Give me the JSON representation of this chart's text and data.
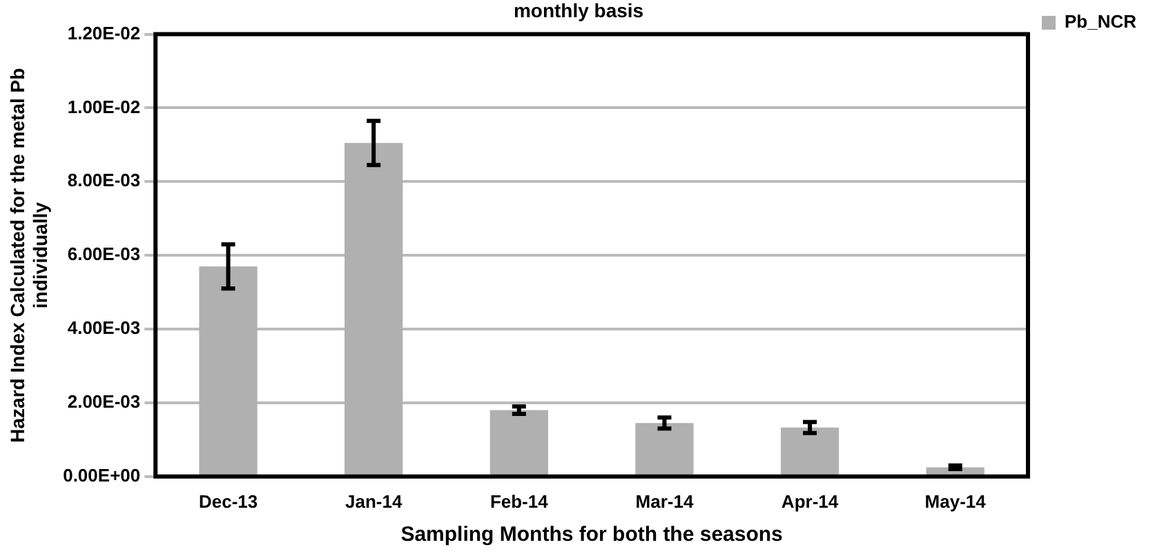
{
  "chart_data": {
    "type": "bar",
    "title": "monthly basis",
    "xlabel": "Sampling Months for both the seasons",
    "ylabel": "Hazard Index Calculated for the metal Pb individually",
    "categories": [
      "Dec-13",
      "Jan-14",
      "Feb-14",
      "Mar-14",
      "Apr-14",
      "May-14"
    ],
    "series": [
      {
        "name": "Pb_NCR",
        "color": "#b0b0b0",
        "values": [
          0.0057,
          0.00905,
          0.0018,
          0.00145,
          0.00133,
          0.00025
        ],
        "errors": [
          0.0006,
          0.0006,
          0.0001,
          0.00015,
          0.00015,
          5e-05
        ]
      }
    ],
    "ylim": [
      0,
      0.012
    ],
    "yticks": [
      {
        "value": 0,
        "label": "0.00E+00"
      },
      {
        "value": 0.002,
        "label": "2.00E-03"
      },
      {
        "value": 0.004,
        "label": "4.00E-03"
      },
      {
        "value": 0.006,
        "label": "6.00E-03"
      },
      {
        "value": 0.008,
        "label": "8.00E-03"
      },
      {
        "value": 0.01,
        "label": "1.00E-02"
      },
      {
        "value": 0.012,
        "label": "1.20E-02"
      }
    ],
    "grid": "y",
    "legend": "top right"
  }
}
